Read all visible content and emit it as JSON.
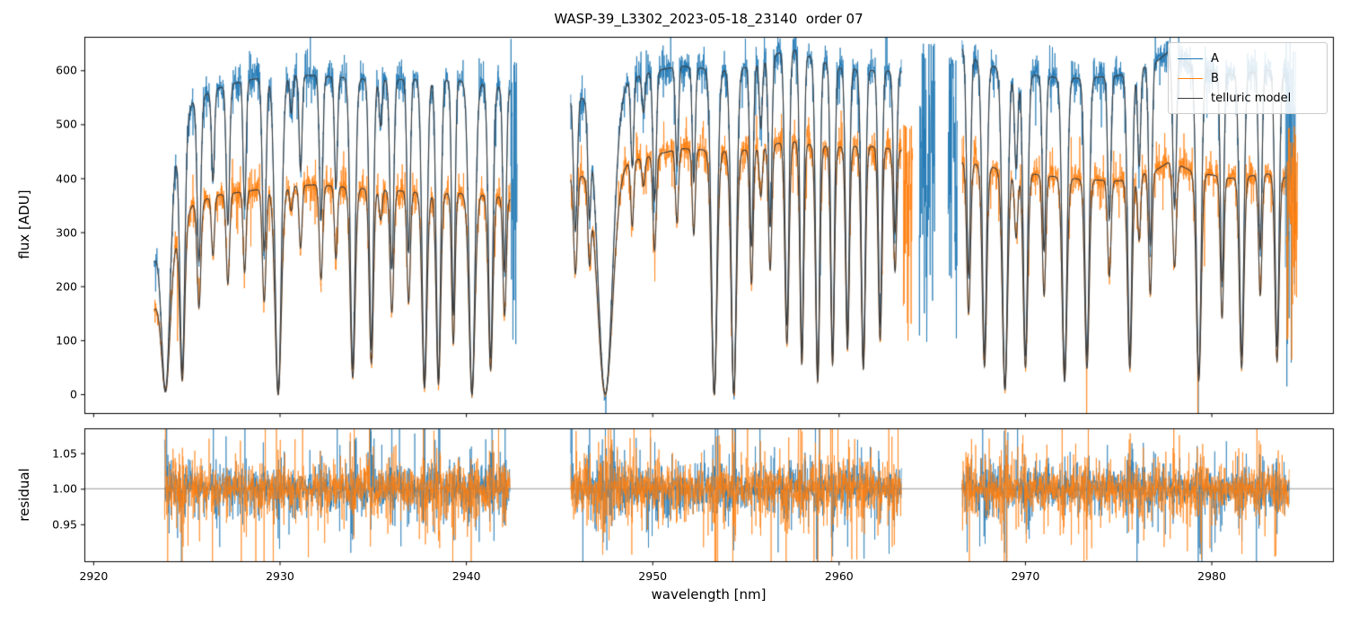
{
  "figure": {
    "title": "WASP-39_L3302_2023-05-18_23140  order 07",
    "background": "#ffffff"
  },
  "legend": {
    "items": [
      {
        "label": "A",
        "color": "#1f77b4"
      },
      {
        "label": "B",
        "color": "#ff7f0e"
      },
      {
        "label": "telluric model",
        "color": "#3d3d3d"
      }
    ]
  },
  "chart_data": [
    {
      "type": "line",
      "panel": "flux",
      "title": "WASP-39_L3302_2023-05-18_23140  order 07",
      "xlabel": "wavelength [nm]",
      "ylabel": "flux [ADU]",
      "xlim": [
        2919.5,
        2986.5
      ],
      "ylim": [
        -35,
        662
      ],
      "xticks": {
        "values": [
          2920,
          2930,
          2940,
          2950,
          2960,
          2970,
          2980
        ],
        "labels": [
          "2920",
          "2930",
          "2940",
          "2950",
          "2960",
          "2970",
          "2980"
        ]
      },
      "yticks": {
        "values": [
          0,
          100,
          200,
          300,
          400,
          500,
          600
        ],
        "labels": [
          "0",
          "100",
          "200",
          "300",
          "400",
          "500",
          "600"
        ]
      },
      "segments": [
        [
          2923.25,
          2942.35
        ],
        [
          2945.6,
          2963.35
        ],
        [
          2966.6,
          2984.15
        ]
      ],
      "series": [
        {
          "name": "A",
          "color": "#1f77b4",
          "noise_frac": 0.018,
          "continuum": [
            [
              2923.25,
              250
            ],
            [
              2923.8,
              330
            ],
            [
              2924.5,
              470
            ],
            [
              2925.3,
              540
            ],
            [
              2926.5,
              565
            ],
            [
              2928,
              580
            ],
            [
              2930,
              592
            ],
            [
              2932,
              590
            ],
            [
              2934,
              585
            ],
            [
              2936,
              582
            ],
            [
              2938,
              585
            ],
            [
              2940,
              580
            ],
            [
              2941.5,
              572
            ],
            [
              2942.35,
              565
            ],
            [
              2945.6,
              550
            ],
            [
              2946.5,
              555
            ],
            [
              2948,
              575
            ],
            [
              2950,
              598
            ],
            [
              2951.5,
              608
            ],
            [
              2953,
              602
            ],
            [
              2954.5,
              600
            ],
            [
              2956,
              618
            ],
            [
              2957.3,
              642
            ],
            [
              2958.5,
              625
            ],
            [
              2960,
              605
            ],
            [
              2961.5,
              600
            ],
            [
              2963.35,
              598
            ],
            [
              2966.6,
              640
            ],
            [
              2967.5,
              615
            ],
            [
              2969,
              600
            ],
            [
              2971,
              588
            ],
            [
              2973,
              585
            ],
            [
              2975,
              590
            ],
            [
              2977,
              615
            ],
            [
              2977.8,
              638
            ],
            [
              2979,
              605
            ],
            [
              2981,
              592
            ],
            [
              2983,
              600
            ],
            [
              2984.15,
              590
            ]
          ]
        },
        {
          "name": "B",
          "color": "#ff7f0e",
          "noise_frac": 0.023,
          "continuum": [
            [
              2923.25,
              160
            ],
            [
              2923.8,
              210
            ],
            [
              2924.5,
              300
            ],
            [
              2925.3,
              350
            ],
            [
              2926.5,
              368
            ],
            [
              2928,
              375
            ],
            [
              2930,
              385
            ],
            [
              2932,
              388
            ],
            [
              2934,
              382
            ],
            [
              2936,
              378
            ],
            [
              2938,
              372
            ],
            [
              2940,
              372
            ],
            [
              2941.5,
              368
            ],
            [
              2942.35,
              362
            ],
            [
              2945.6,
              405
            ],
            [
              2946.5,
              408
            ],
            [
              2948,
              425
            ],
            [
              2950,
              442
            ],
            [
              2951.5,
              455
            ],
            [
              2953,
              452
            ],
            [
              2954.5,
              450
            ],
            [
              2956,
              458
            ],
            [
              2957.3,
              470
            ],
            [
              2958.5,
              462
            ],
            [
              2960,
              458
            ],
            [
              2961.5,
              460
            ],
            [
              2963.35,
              452
            ],
            [
              2966.6,
              430
            ],
            [
              2967.5,
              425
            ],
            [
              2969,
              415
            ],
            [
              2971,
              405
            ],
            [
              2973,
              398
            ],
            [
              2975,
              395
            ],
            [
              2977,
              415
            ],
            [
              2977.8,
              432
            ],
            [
              2979,
              412
            ],
            [
              2981,
              400
            ],
            [
              2983,
              408
            ],
            [
              2984.15,
              400
            ]
          ]
        },
        {
          "name": "telluric model",
          "color": "#3d3d3d"
        }
      ],
      "telluric_lines": [
        [
          2923.85,
          0.98,
          0.22
        ],
        [
          2924.75,
          0.92,
          0.13
        ],
        [
          2925.65,
          0.55,
          0.1
        ],
        [
          2926.4,
          0.3,
          0.08
        ],
        [
          2927.2,
          0.45,
          0.09
        ],
        [
          2928.1,
          0.4,
          0.08
        ],
        [
          2929.15,
          0.55,
          0.1
        ],
        [
          2929.9,
          1.0,
          0.17
        ],
        [
          2930.6,
          0.12,
          0.08
        ],
        [
          2931.1,
          0.3,
          0.08
        ],
        [
          2932.2,
          0.45,
          0.09
        ],
        [
          2933.0,
          0.35,
          0.08
        ],
        [
          2933.9,
          0.92,
          0.13
        ],
        [
          2934.9,
          0.85,
          0.11
        ],
        [
          2935.4,
          0.15,
          0.08
        ],
        [
          2936.0,
          0.6,
          0.1
        ],
        [
          2936.9,
          0.55,
          0.09
        ],
        [
          2937.75,
          0.97,
          0.13
        ],
        [
          2938.5,
          0.95,
          0.12
        ],
        [
          2939.3,
          0.75,
          0.09
        ],
        [
          2940.3,
          1.0,
          0.16
        ],
        [
          2941.3,
          0.88,
          0.12
        ],
        [
          2942.05,
          0.6,
          0.09
        ],
        [
          2945.85,
          0.45,
          0.1
        ],
        [
          2946.6,
          0.35,
          0.08
        ],
        [
          2947.45,
          1.0,
          0.4
        ],
        [
          2948.9,
          0.28,
          0.08
        ],
        [
          2949.5,
          0.12,
          0.08
        ],
        [
          2950.1,
          0.4,
          0.09
        ],
        [
          2951.3,
          0.3,
          0.08
        ],
        [
          2952.2,
          0.35,
          0.08
        ],
        [
          2953.3,
          1.0,
          0.15
        ],
        [
          2954.35,
          1.0,
          0.14
        ],
        [
          2955.3,
          0.55,
          0.09
        ],
        [
          2955.8,
          0.2,
          0.08
        ],
        [
          2956.3,
          0.5,
          0.09
        ],
        [
          2957.2,
          0.8,
          0.11
        ],
        [
          2958.0,
          0.88,
          0.1
        ],
        [
          2958.85,
          0.95,
          0.11
        ],
        [
          2959.65,
          0.88,
          0.1
        ],
        [
          2960.45,
          0.82,
          0.1
        ],
        [
          2961.3,
          0.9,
          0.11
        ],
        [
          2962.2,
          0.78,
          0.1
        ],
        [
          2963.0,
          0.5,
          0.09
        ],
        [
          2966.95,
          0.65,
          0.1
        ],
        [
          2967.8,
          0.88,
          0.12
        ],
        [
          2968.9,
          0.98,
          0.14
        ],
        [
          2969.5,
          0.3,
          0.09
        ],
        [
          2970.0,
          0.88,
          0.12
        ],
        [
          2971.0,
          0.55,
          0.09
        ],
        [
          2972.1,
          0.94,
          0.13
        ],
        [
          2973.3,
          0.88,
          0.12
        ],
        [
          2974.5,
          0.45,
          0.09
        ],
        [
          2975.6,
          0.88,
          0.12
        ],
        [
          2976.1,
          0.3,
          0.08
        ],
        [
          2976.7,
          0.55,
          0.09
        ],
        [
          2978.0,
          0.45,
          0.1
        ],
        [
          2979.3,
          0.94,
          0.13
        ],
        [
          2980.55,
          0.65,
          0.09
        ],
        [
          2981.6,
          0.88,
          0.12
        ],
        [
          2982.6,
          0.55,
          0.09
        ],
        [
          2983.5,
          0.85,
          0.11
        ]
      ],
      "artifact_spikes": [
        {
          "series": "A",
          "range": [
            2942.38,
            2942.72
          ],
          "ymin": 0,
          "ymax": 660
        },
        {
          "series": "A",
          "range": [
            2964.3,
            2965.15
          ],
          "ymin": 60,
          "ymax": 660
        },
        {
          "series": "A",
          "range": [
            2965.85,
            2966.35
          ],
          "ymin": 40,
          "ymax": 660
        },
        {
          "series": "B",
          "range": [
            2963.45,
            2963.95
          ],
          "ymin": 0,
          "ymax": 510
        },
        {
          "series": "A",
          "range": [
            2983.95,
            2984.5
          ],
          "ymin": 0,
          "ymax": 660
        },
        {
          "series": "B",
          "range": [
            2984.0,
            2984.6
          ],
          "ymin": 0,
          "ymax": 500
        }
      ]
    },
    {
      "type": "line",
      "panel": "residual",
      "xlabel": "wavelength [nm]",
      "ylabel": "residual",
      "xlim": [
        2919.5,
        2986.5
      ],
      "ylim": [
        0.898,
        1.085
      ],
      "yticks": {
        "values": [
          0.95,
          1.0,
          1.05
        ],
        "labels": [
          "0.95",
          "1.00",
          "1.05"
        ]
      },
      "hline": 1.0,
      "segments": [
        [
          2923.8,
          2942.35
        ],
        [
          2945.6,
          2963.35
        ],
        [
          2966.6,
          2984.15
        ]
      ],
      "series": [
        {
          "name": "A residual",
          "color": "#1f77b4",
          "noise_sigma": 0.012
        },
        {
          "name": "B residual",
          "color": "#ff7f0e",
          "noise_sigma": 0.014
        }
      ]
    }
  ]
}
